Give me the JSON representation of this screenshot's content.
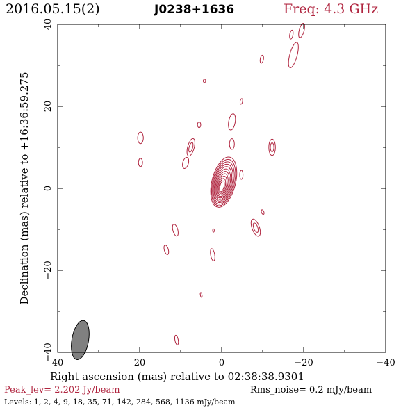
{
  "header": {
    "date": "2016.05.15(2)",
    "source": "J0238+1636",
    "frequency": "Freq: 4.3 GHz"
  },
  "footer": {
    "peak": "Peak_lev=  2.202 Jy/beam",
    "rms": "Rms_noise=  0.2 mJy/beam",
    "levels": "Levels:   1,   2,   4,   9,  18,  35,  71, 142, 284, 568, 1136 mJy/beam"
  },
  "colors": {
    "contour": "#b0253f",
    "beam_fill": "#808080",
    "frame": "#000000"
  },
  "chart_data": {
    "type": "contour",
    "xlabel": "Right ascension (mas) relative to 02:38:38.9301",
    "ylabel": "Declination (mas) relative to +16:36:59.275",
    "xlim": [
      40,
      -40
    ],
    "ylim": [
      -40,
      40
    ],
    "x_ticks": [
      40,
      20,
      0,
      -20,
      -40
    ],
    "y_ticks": [
      -40,
      -20,
      0,
      20,
      40
    ],
    "x_tick_labels": [
      "40",
      "20",
      "0",
      "−20",
      "−40"
    ],
    "y_tick_labels": [
      "−40",
      "−20",
      "0",
      "20",
      "40"
    ],
    "levels_mjy": [
      1,
      2,
      4,
      9,
      18,
      35,
      71,
      142,
      284,
      568,
      1136
    ],
    "peak_jy_per_beam": 2.202,
    "rms_mjy_per_beam": 0.2,
    "beam": {
      "x": 34.5,
      "y": -37,
      "major_mas": 4.2,
      "minor_mas": 1.7,
      "pa_deg": 10
    },
    "core": {
      "x": -0.5,
      "y": 1.5,
      "n_contours": 11
    },
    "components": [
      {
        "x": -19.5,
        "y": 38.5,
        "rx": 0.6,
        "ry": 1.8,
        "angle": 15,
        "levels": 1
      },
      {
        "x": -17.5,
        "y": 32.5,
        "rx": 0.9,
        "ry": 3.2,
        "angle": 15,
        "levels": 1
      },
      {
        "x": -17,
        "y": 37.5,
        "rx": 0.4,
        "ry": 1.1,
        "angle": 10,
        "levels": 1
      },
      {
        "x": -9.8,
        "y": 31.5,
        "rx": 0.4,
        "ry": 1.0,
        "angle": 10,
        "levels": 1
      },
      {
        "x": 4.2,
        "y": 26.2,
        "rx": 0.3,
        "ry": 0.4,
        "angle": 0,
        "levels": 1
      },
      {
        "x": -4.8,
        "y": 21.2,
        "rx": 0.3,
        "ry": 0.7,
        "angle": 10,
        "levels": 1
      },
      {
        "x": 5.5,
        "y": 15.5,
        "rx": 0.4,
        "ry": 0.7,
        "angle": 0,
        "levels": 1
      },
      {
        "x": -2.5,
        "y": 16.2,
        "rx": 0.8,
        "ry": 2.0,
        "angle": 10,
        "levels": 1
      },
      {
        "x": -2.5,
        "y": 10.8,
        "rx": 0.6,
        "ry": 1.3,
        "angle": 0,
        "levels": 1
      },
      {
        "x": 19.8,
        "y": 12.3,
        "rx": 0.7,
        "ry": 1.4,
        "angle": 0,
        "levels": 1
      },
      {
        "x": 19.8,
        "y": 6.3,
        "rx": 0.5,
        "ry": 1.0,
        "angle": 0,
        "levels": 1
      },
      {
        "x": 7.5,
        "y": 10.0,
        "rx": 0.8,
        "ry": 2.2,
        "angle": 15,
        "levels": 2
      },
      {
        "x": 8.8,
        "y": 6.2,
        "rx": 0.7,
        "ry": 1.4,
        "angle": 15,
        "levels": 1
      },
      {
        "x": -12.3,
        "y": 10.0,
        "rx": 0.8,
        "ry": 2.0,
        "angle": 0,
        "levels": 2
      },
      {
        "x": -4.8,
        "y": 3.3,
        "rx": 0.4,
        "ry": 1.1,
        "angle": 0,
        "levels": 1
      },
      {
        "x": -8.3,
        "y": -9.6,
        "rx": 0.9,
        "ry": 2.2,
        "angle": -20,
        "levels": 2
      },
      {
        "x": -10.0,
        "y": -5.8,
        "rx": 0.3,
        "ry": 0.6,
        "angle": -20,
        "levels": 1
      },
      {
        "x": 11.3,
        "y": -10.2,
        "rx": 0.6,
        "ry": 1.5,
        "angle": -15,
        "levels": 1
      },
      {
        "x": 2.0,
        "y": -10.3,
        "rx": 0.2,
        "ry": 0.4,
        "angle": 0,
        "levels": 1
      },
      {
        "x": 13.5,
        "y": -15.0,
        "rx": 0.5,
        "ry": 1.2,
        "angle": -15,
        "levels": 1
      },
      {
        "x": 2.2,
        "y": -16.2,
        "rx": 0.5,
        "ry": 1.5,
        "angle": -10,
        "levels": 1
      },
      {
        "x": 5.0,
        "y": -26.0,
        "rx": 0.2,
        "ry": 0.6,
        "angle": -10,
        "levels": 1
      },
      {
        "x": 11.0,
        "y": -37.0,
        "rx": 0.4,
        "ry": 1.2,
        "angle": -10,
        "levels": 1
      }
    ]
  }
}
